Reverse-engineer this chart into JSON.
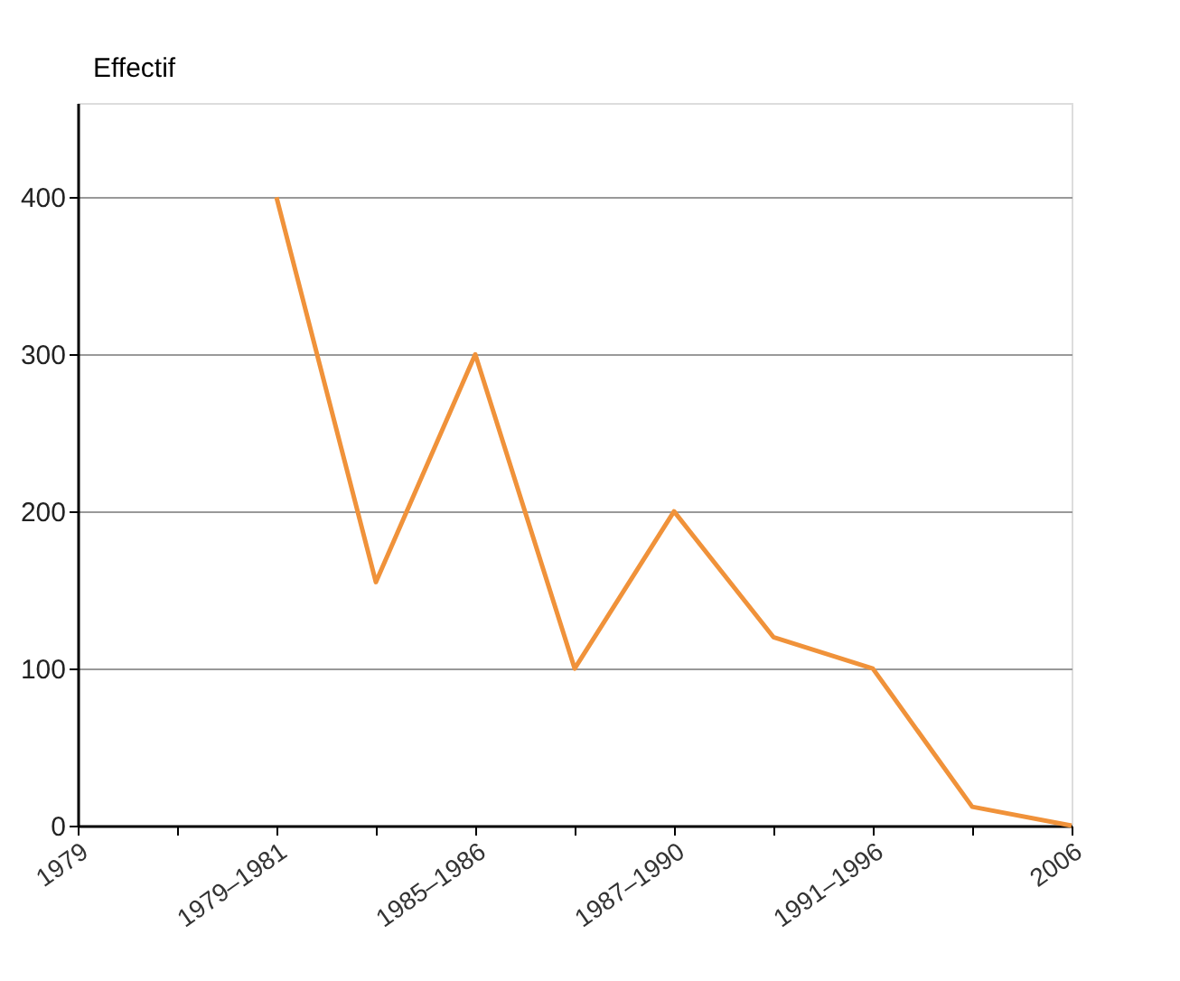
{
  "chart_data": {
    "type": "line",
    "ylabel": "Effectif",
    "categories": [
      "1979",
      null,
      "1979–1981",
      null,
      "1985–1986",
      null,
      "1987–1990",
      null,
      "1991–1996",
      null,
      "2006"
    ],
    "series": [
      {
        "color": "#f0923a",
        "values": [
          null,
          null,
          400,
          155,
          300,
          100,
          200,
          120,
          100,
          12,
          0
        ]
      }
    ],
    "ylim": [
      0,
      460
    ],
    "yticks": [
      0,
      100,
      200,
      300,
      400
    ],
    "grid": "y",
    "marker": "none",
    "line_style": "solid"
  }
}
